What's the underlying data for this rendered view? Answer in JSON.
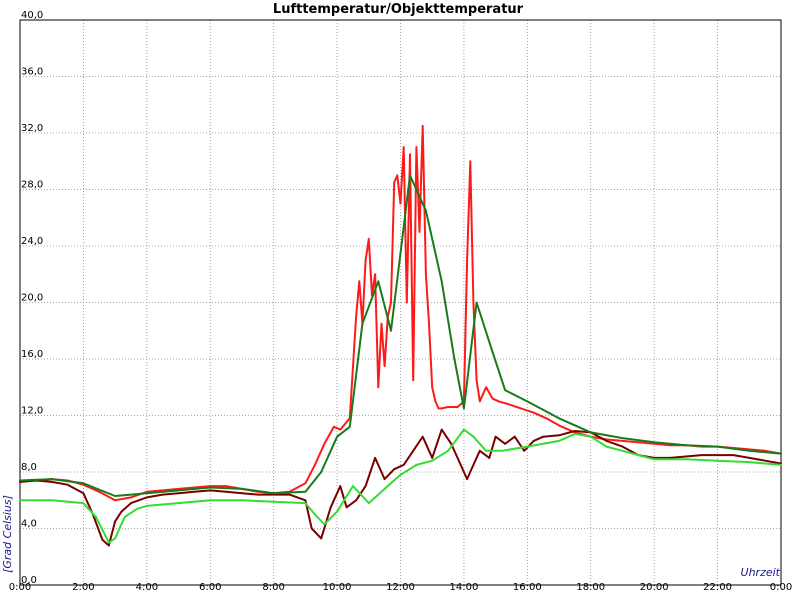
{
  "chart_data": {
    "type": "line",
    "title": "Lufttemperatur/Objekttemperatur",
    "xlabel": "Uhrzeit",
    "ylabel": "[Grad Celsius]",
    "xlim": [
      0,
      24
    ],
    "ylim": [
      0,
      40
    ],
    "x_unit": "hours",
    "x_ticks": [
      {
        "x": 0,
        "label": "0:00"
      },
      {
        "x": 2,
        "label": "2:00"
      },
      {
        "x": 4,
        "label": "4:00"
      },
      {
        "x": 6,
        "label": "6:00"
      },
      {
        "x": 8,
        "label": "8:00"
      },
      {
        "x": 10,
        "label": "10:00"
      },
      {
        "x": 12,
        "label": "12:00"
      },
      {
        "x": 14,
        "label": "14:00"
      },
      {
        "x": 16,
        "label": "16:00"
      },
      {
        "x": 18,
        "label": "18:00"
      },
      {
        "x": 20,
        "label": "20:00"
      },
      {
        "x": 22,
        "label": "22:00"
      },
      {
        "x": 24,
        "label": "0:00"
      }
    ],
    "y_ticks": [
      {
        "y": 0,
        "label": "0,0"
      },
      {
        "y": 4,
        "label": "4,0"
      },
      {
        "y": 8,
        "label": "8,0"
      },
      {
        "y": 12,
        "label": "12,0"
      },
      {
        "y": 16,
        "label": "16,0"
      },
      {
        "y": 20,
        "label": "20,0"
      },
      {
        "y": 24,
        "label": "24,0"
      },
      {
        "y": 28,
        "label": "28,0"
      },
      {
        "y": 32,
        "label": "32,0"
      },
      {
        "y": 36,
        "label": "36,0"
      },
      {
        "y": 40,
        "label": "40,0"
      }
    ],
    "grid": true,
    "legend": "none",
    "series": [
      {
        "color": "#ff1a1a",
        "x": [
          0,
          0.5,
          1,
          1.5,
          2,
          2.5,
          3,
          3.5,
          4,
          4.5,
          5,
          5.5,
          6,
          6.5,
          7,
          7.5,
          8,
          8.5,
          9,
          9.3,
          9.6,
          9.9,
          10.1,
          10.4,
          10.6,
          10.7,
          10.8,
          10.9,
          11.0,
          11.1,
          11.2,
          11.3,
          11.4,
          11.5,
          11.6,
          11.7,
          11.8,
          11.9,
          12.0,
          12.1,
          12.2,
          12.3,
          12.4,
          12.5,
          12.6,
          12.7,
          12.8,
          12.9,
          13.0,
          13.1,
          13.2,
          13.3,
          13.5,
          13.8,
          14.0,
          14.1,
          14.2,
          14.3,
          14.4,
          14.5,
          14.6,
          14.7,
          14.9,
          15.1,
          15.4,
          15.8,
          16.2,
          16.6,
          17.0,
          17.5,
          18.0,
          18.5,
          19.0,
          19.5,
          20.0,
          20.5,
          21.0,
          21.5,
          22.0,
          22.5,
          23.0,
          23.5,
          24.0
        ],
        "values": [
          7.3,
          7.4,
          7.5,
          7.4,
          7.1,
          6.6,
          6.0,
          6.2,
          6.6,
          6.7,
          6.8,
          6.9,
          7.0,
          7.0,
          6.8,
          6.6,
          6.5,
          6.6,
          7.2,
          8.5,
          10.0,
          11.2,
          11.0,
          11.8,
          19.0,
          21.5,
          18.5,
          23.0,
          24.5,
          20.5,
          22.0,
          14.0,
          18.5,
          15.5,
          19.0,
          20.0,
          28.5,
          29.0,
          27.0,
          31.0,
          20.0,
          30.5,
          14.5,
          31.0,
          25.0,
          32.5,
          22.0,
          18.5,
          14.0,
          13.0,
          12.5,
          12.5,
          12.6,
          12.6,
          13.0,
          23.0,
          30.0,
          20.0,
          14.5,
          13.0,
          13.5,
          14.0,
          13.2,
          13.0,
          12.8,
          12.5,
          12.2,
          11.8,
          11.3,
          10.8,
          10.5,
          10.3,
          10.2,
          10.1,
          10.0,
          9.9,
          9.9,
          9.8,
          9.8,
          9.7,
          9.6,
          9.5,
          9.3
        ]
      },
      {
        "color": "#7a0000",
        "x": [
          0,
          0.5,
          1,
          1.5,
          2,
          2.3,
          2.6,
          2.8,
          3.0,
          3.2,
          3.5,
          4,
          4.5,
          5,
          5.5,
          6,
          6.5,
          7,
          7.5,
          8,
          8.5,
          9,
          9.2,
          9.5,
          9.8,
          10.1,
          10.3,
          10.6,
          10.9,
          11.2,
          11.5,
          11.8,
          12.1,
          12.4,
          12.7,
          13.0,
          13.3,
          13.6,
          13.9,
          14.1,
          14.3,
          14.5,
          14.8,
          15.0,
          15.3,
          15.6,
          15.9,
          16.2,
          16.5,
          17.0,
          17.5,
          18.0,
          18.5,
          19.0,
          19.5,
          20.0,
          20.5,
          21.0,
          21.5,
          22.0,
          22.5,
          23.0,
          23.5,
          24.0
        ],
        "values": [
          7.3,
          7.4,
          7.3,
          7.1,
          6.5,
          5.0,
          3.2,
          2.8,
          4.5,
          5.2,
          5.8,
          6.2,
          6.4,
          6.5,
          6.6,
          6.7,
          6.6,
          6.5,
          6.4,
          6.4,
          6.4,
          6.0,
          4.0,
          3.3,
          5.5,
          7.0,
          5.5,
          6.0,
          7.0,
          9.0,
          7.5,
          8.2,
          8.5,
          9.5,
          10.5,
          9.0,
          11.0,
          10.0,
          8.5,
          7.5,
          8.5,
          9.5,
          9.0,
          10.5,
          10.0,
          10.5,
          9.5,
          10.2,
          10.5,
          10.6,
          10.9,
          10.8,
          10.2,
          9.8,
          9.2,
          9.0,
          9.0,
          9.1,
          9.2,
          9.2,
          9.2,
          9.0,
          8.8,
          8.6
        ]
      },
      {
        "color": "#1a7a1a",
        "x": [
          0,
          1,
          2,
          3,
          4,
          5,
          6,
          7,
          8,
          9,
          9.5,
          10,
          10.4,
          10.8,
          11.3,
          11.7,
          12.3,
          12.8,
          13.3,
          13.7,
          14.0,
          14.4,
          14.9,
          15.3,
          16.0,
          17.0,
          18.0,
          19.0,
          20.0,
          21.0,
          22.0,
          23.0,
          24.0
        ],
        "values": [
          7.4,
          7.5,
          7.2,
          6.3,
          6.5,
          6.7,
          6.9,
          6.8,
          6.5,
          6.6,
          8.0,
          10.5,
          11.2,
          18.5,
          21.5,
          18.0,
          29.0,
          26.5,
          21.5,
          16.0,
          12.5,
          20.0,
          16.5,
          13.8,
          13.0,
          11.8,
          10.8,
          10.4,
          10.1,
          9.9,
          9.8,
          9.5,
          9.3
        ]
      },
      {
        "color": "#33dd33",
        "x": [
          0,
          1,
          2,
          2.4,
          2.8,
          3.0,
          3.3,
          3.7,
          4.0,
          5,
          6,
          7,
          8,
          9,
          9.3,
          9.6,
          10,
          10.5,
          11.0,
          11.5,
          12.0,
          12.5,
          13.0,
          13.5,
          14.0,
          14.3,
          14.7,
          15.2,
          16.0,
          17.0,
          17.5,
          18.0,
          18.5,
          19.5,
          20.0,
          21.0,
          22.0,
          23.0,
          24.0
        ],
        "values": [
          6.0,
          6.0,
          5.8,
          4.8,
          3.0,
          3.3,
          4.8,
          5.4,
          5.6,
          5.8,
          6.0,
          6.0,
          5.9,
          5.8,
          5.0,
          4.3,
          5.2,
          7.0,
          5.8,
          6.8,
          7.8,
          8.5,
          8.8,
          9.5,
          11.0,
          10.5,
          9.5,
          9.5,
          9.8,
          10.2,
          10.7,
          10.5,
          9.8,
          9.2,
          8.9,
          8.9,
          8.8,
          8.7,
          8.5
        ]
      }
    ]
  }
}
